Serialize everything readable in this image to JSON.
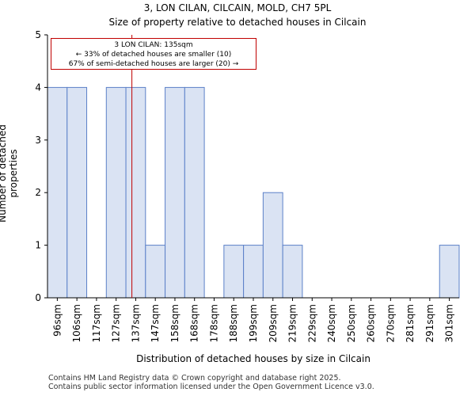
{
  "chart_data": {
    "type": "bar",
    "title": "3, LON CILAN, CILCAIN, MOLD, CH7 5PL",
    "subtitle": "Size of property relative to detached houses in Cilcain",
    "xlabel": "Distribution of detached houses by size in Cilcain",
    "ylabel": "Number of detached properties",
    "categories": [
      "96sqm",
      "106sqm",
      "117sqm",
      "127sqm",
      "137sqm",
      "147sqm",
      "158sqm",
      "168sqm",
      "178sqm",
      "188sqm",
      "199sqm",
      "209sqm",
      "219sqm",
      "229sqm",
      "240sqm",
      "250sqm",
      "260sqm",
      "270sqm",
      "281sqm",
      "291sqm",
      "301sqm"
    ],
    "values": [
      4,
      4,
      0,
      4,
      4,
      1,
      4,
      4,
      0,
      1,
      1,
      2,
      1,
      0,
      0,
      0,
      0,
      0,
      0,
      0,
      1
    ],
    "ylim": [
      0,
      5
    ],
    "yticks": [
      0,
      1,
      2,
      3,
      4,
      5
    ],
    "marker_value": 135,
    "bar_color": "#dae3f3",
    "bar_edge_color": "#5b80c8",
    "marker_color": "#c00000",
    "annotation": {
      "line1": "3 LON CILAN: 135sqm",
      "line2": "← 33% of detached houses are smaller (10)",
      "line3": "67% of semi-detached houses are larger (20) →"
    }
  },
  "footer": {
    "line1": "Contains HM Land Registry data © Crown copyright and database right 2025.",
    "line2": "Contains public sector information licensed under the Open Government Licence v3.0."
  }
}
